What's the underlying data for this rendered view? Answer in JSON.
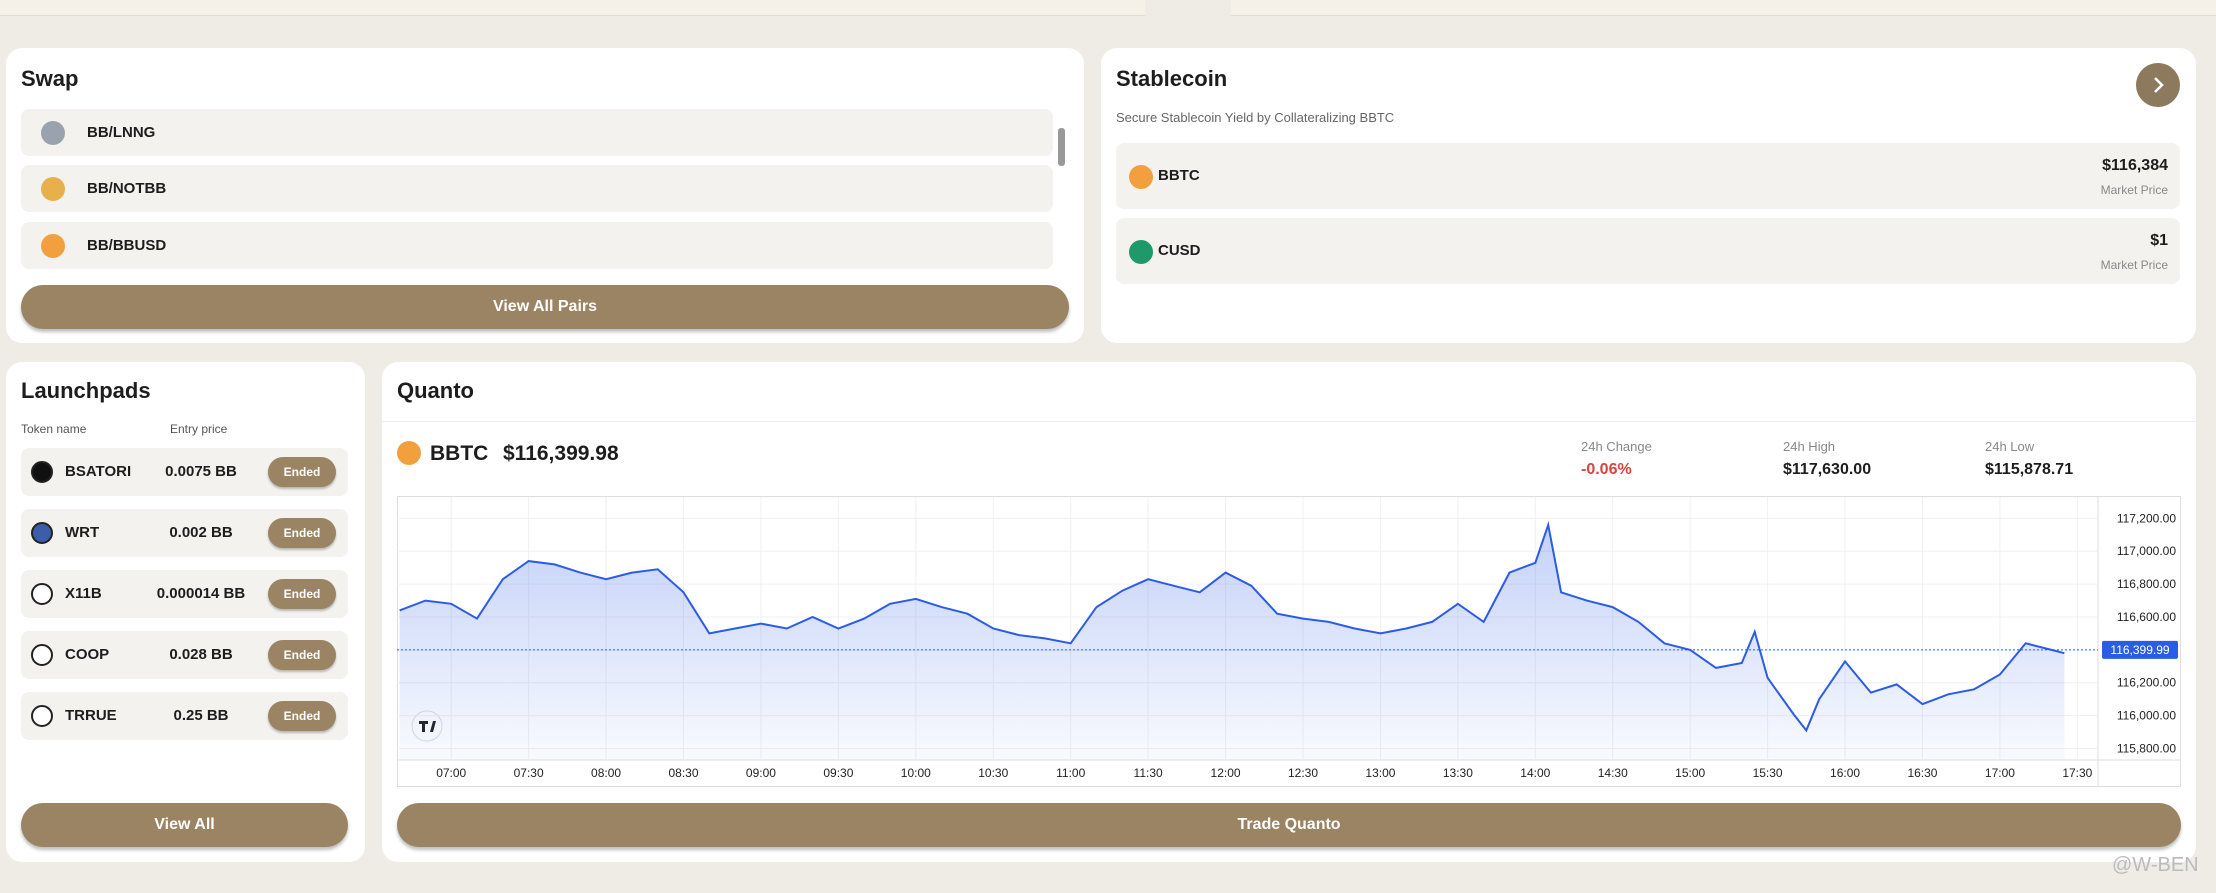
{
  "swap": {
    "title": "Swap",
    "pairs": [
      "BB/LNNG",
      "BB/NOTBB",
      "BB/BBUSD"
    ],
    "button": "View All Pairs"
  },
  "stablecoin": {
    "title": "Stablecoin",
    "subtitle": "Secure Stablecoin Yield by Collateralizing BBTC",
    "assets": [
      {
        "name": "BBTC",
        "price": "$116,384",
        "price_label": "Market Price"
      },
      {
        "name": "CUSD",
        "price": "$1",
        "price_label": "Market Price"
      }
    ]
  },
  "launchpads": {
    "title": "Launchpads",
    "columns": [
      "Token name",
      "Entry price"
    ],
    "tokens": [
      {
        "name": "BSATORI",
        "price": "0.0075 BB",
        "status": "Ended"
      },
      {
        "name": "WRT",
        "price": "0.002 BB",
        "status": "Ended"
      },
      {
        "name": "X11B",
        "price": "0.000014 BB",
        "status": "Ended"
      },
      {
        "name": "COOP",
        "price": "0.028 BB",
        "status": "Ended"
      },
      {
        "name": "TRRUE",
        "price": "0.25 BB",
        "status": "Ended"
      }
    ],
    "button": "View All"
  },
  "quanto": {
    "title": "Quanto",
    "asset": "BBTC",
    "price": "$116,399.98",
    "stats": [
      {
        "label": "24h Change",
        "value": "-0.06%"
      },
      {
        "label": "24h High",
        "value": "$117,630.00"
      },
      {
        "label": "24h Low",
        "value": "$115,878.71"
      }
    ],
    "chart": {
      "type": "line",
      "color": "#2b5ce6",
      "x": [
        "06:40",
        "06:50",
        "07:00",
        "07:10",
        "07:20",
        "07:30",
        "07:40",
        "07:50",
        "08:00",
        "08:10",
        "08:20",
        "08:30",
        "08:40",
        "08:50",
        "09:00",
        "09:10",
        "09:20",
        "09:30",
        "09:40",
        "09:50",
        "10:00",
        "10:10",
        "10:20",
        "10:30",
        "10:40",
        "10:50",
        "11:00",
        "11:10",
        "11:20",
        "11:30",
        "11:40",
        "11:50",
        "12:00",
        "12:10",
        "12:20",
        "12:30",
        "12:40",
        "12:50",
        "13:00",
        "13:10",
        "13:20",
        "13:30",
        "13:40",
        "13:50",
        "14:00",
        "14:05",
        "14:10",
        "14:20",
        "14:30",
        "14:40",
        "14:50",
        "15:00",
        "15:10",
        "15:20",
        "15:25",
        "15:30",
        "15:40",
        "15:45",
        "15:50",
        "16:00",
        "16:10",
        "16:20",
        "16:30",
        "16:40",
        "16:50",
        "17:00",
        "17:10",
        "17:20",
        "17:25"
      ],
      "values": [
        116640,
        116700,
        116680,
        116590,
        116830,
        116940,
        116920,
        116870,
        116830,
        116870,
        116890,
        116750,
        116500,
        116530,
        116560,
        116530,
        116600,
        116530,
        116590,
        116680,
        116710,
        116660,
        116620,
        116530,
        116490,
        116470,
        116440,
        116660,
        116760,
        116830,
        116790,
        116750,
        116870,
        116790,
        116620,
        116590,
        116570,
        116530,
        116500,
        116530,
        116570,
        116680,
        116570,
        116870,
        116930,
        117160,
        116750,
        116700,
        116660,
        116570,
        116440,
        116400,
        116290,
        116320,
        116510,
        116230,
        116010,
        115910,
        116100,
        116330,
        116140,
        116190,
        116070,
        116130,
        116160,
        116250,
        116440,
        116400,
        116380
      ],
      "xlim": [
        "06:39",
        "17:38"
      ],
      "xticks": [
        "07:00",
        "07:30",
        "08:00",
        "08:30",
        "09:00",
        "09:30",
        "10:00",
        "10:30",
        "11:00",
        "11:30",
        "12:00",
        "12:30",
        "13:00",
        "13:30",
        "14:00",
        "14:30",
        "15:00",
        "15:30",
        "16:00",
        "16:30",
        "17:00",
        "17:30"
      ],
      "ylim": [
        115730,
        117330
      ],
      "yticks": [
        {
          "value": 115800,
          "label": "115,800.00"
        },
        {
          "value": 116000,
          "label": "116,000.00"
        },
        {
          "value": 116200,
          "label": "116,200.00"
        },
        {
          "value": 116400,
          "label": "116,400.00"
        },
        {
          "value": 116600,
          "label": "116,600.00"
        },
        {
          "value": 116800,
          "label": "116,800.00"
        },
        {
          "value": 117000,
          "label": "117,000.00"
        },
        {
          "value": 117200,
          "label": "117,200.00"
        }
      ],
      "last_price": {
        "value": 116399.99,
        "label": "116,399.99"
      },
      "grid": true
    },
    "button": "Trade Quanto"
  },
  "watermark": "@W-BEN"
}
